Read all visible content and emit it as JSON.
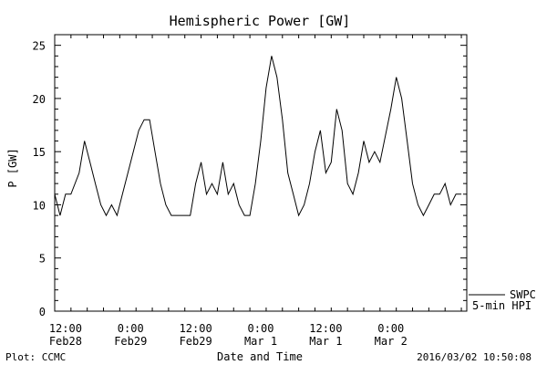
{
  "chart_data": {
    "type": "line",
    "title": "Hemispheric Power [GW]",
    "ylabel": "P [GW]",
    "xlabel": "Date and Time",
    "ylim": [
      0,
      26
    ],
    "yticks": [
      0,
      5,
      10,
      15,
      20,
      25
    ],
    "xlim": [
      "2016-02-28T10:00",
      "2016-03-02T14:00"
    ],
    "xticks": [
      {
        "time": "2016-02-28T12:00",
        "line1": "12:00",
        "line2": "Feb28"
      },
      {
        "time": "2016-02-29T00:00",
        "line1": "0:00",
        "line2": "Feb29"
      },
      {
        "time": "2016-02-29T12:00",
        "line1": "12:00",
        "line2": "Feb29"
      },
      {
        "time": "2016-03-01T00:00",
        "line1": "0:00",
        "line2": "Mar 1"
      },
      {
        "time": "2016-03-01T12:00",
        "line1": "12:00",
        "line2": "Mar 1"
      },
      {
        "time": "2016-03-02T00:00",
        "line1": "0:00",
        "line2": "Mar 2"
      }
    ],
    "grid": false,
    "legend_position": "bottom-right",
    "series": [
      {
        "name": "SWPC 5-min HPI",
        "color": "#000000",
        "points": [
          [
            "2016-02-28T10:00",
            11
          ],
          [
            "2016-02-28T11:00",
            9
          ],
          [
            "2016-02-28T12:00",
            11
          ],
          [
            "2016-02-28T13:00",
            11
          ],
          [
            "2016-02-28T14:30",
            13
          ],
          [
            "2016-02-28T15:30",
            16
          ],
          [
            "2016-02-28T16:30",
            14
          ],
          [
            "2016-02-28T17:30",
            12
          ],
          [
            "2016-02-28T18:30",
            10
          ],
          [
            "2016-02-28T19:30",
            9
          ],
          [
            "2016-02-28T20:30",
            10
          ],
          [
            "2016-02-28T21:30",
            9
          ],
          [
            "2016-02-28T22:30",
            11
          ],
          [
            "2016-02-29T00:00",
            14
          ],
          [
            "2016-02-29T01:30",
            17
          ],
          [
            "2016-02-29T02:30",
            18
          ],
          [
            "2016-02-29T03:30",
            18
          ],
          [
            "2016-02-29T04:30",
            15
          ],
          [
            "2016-02-29T05:30",
            12
          ],
          [
            "2016-02-29T06:30",
            10
          ],
          [
            "2016-02-29T07:30",
            9
          ],
          [
            "2016-02-29T10:00",
            9
          ],
          [
            "2016-02-29T11:00",
            9
          ],
          [
            "2016-02-29T12:00",
            12
          ],
          [
            "2016-02-29T13:00",
            14
          ],
          [
            "2016-02-29T14:00",
            11
          ],
          [
            "2016-02-29T15:00",
            12
          ],
          [
            "2016-02-29T16:00",
            11
          ],
          [
            "2016-02-29T17:00",
            14
          ],
          [
            "2016-02-29T18:00",
            11
          ],
          [
            "2016-02-29T19:00",
            12
          ],
          [
            "2016-02-29T20:00",
            10
          ],
          [
            "2016-02-29T21:00",
            9
          ],
          [
            "2016-02-29T22:00",
            9
          ],
          [
            "2016-02-29T23:00",
            12
          ],
          [
            "2016-03-01T00:00",
            16
          ],
          [
            "2016-03-01T01:00",
            21
          ],
          [
            "2016-03-01T02:00",
            24
          ],
          [
            "2016-03-01T03:00",
            22
          ],
          [
            "2016-03-01T04:00",
            18
          ],
          [
            "2016-03-01T05:00",
            13
          ],
          [
            "2016-03-01T06:00",
            11
          ],
          [
            "2016-03-01T07:00",
            9
          ],
          [
            "2016-03-01T08:00",
            10
          ],
          [
            "2016-03-01T09:00",
            12
          ],
          [
            "2016-03-01T10:00",
            15
          ],
          [
            "2016-03-01T11:00",
            17
          ],
          [
            "2016-03-01T12:00",
            13
          ],
          [
            "2016-03-01T13:00",
            14
          ],
          [
            "2016-03-01T14:00",
            19
          ],
          [
            "2016-03-01T15:00",
            17
          ],
          [
            "2016-03-01T16:00",
            12
          ],
          [
            "2016-03-01T17:00",
            11
          ],
          [
            "2016-03-01T18:00",
            13
          ],
          [
            "2016-03-01T19:00",
            16
          ],
          [
            "2016-03-01T20:00",
            14
          ],
          [
            "2016-03-01T21:00",
            15
          ],
          [
            "2016-03-01T22:00",
            14
          ],
          [
            "2016-03-02T00:00",
            19
          ],
          [
            "2016-03-02T01:00",
            22
          ],
          [
            "2016-03-02T02:00",
            20
          ],
          [
            "2016-03-02T03:00",
            16
          ],
          [
            "2016-03-02T04:00",
            12
          ],
          [
            "2016-03-02T05:00",
            10
          ],
          [
            "2016-03-02T06:00",
            9
          ],
          [
            "2016-03-02T07:00",
            10
          ],
          [
            "2016-03-02T08:00",
            11
          ],
          [
            "2016-03-02T09:00",
            11
          ],
          [
            "2016-03-02T10:00",
            12
          ],
          [
            "2016-03-02T11:00",
            10
          ],
          [
            "2016-03-02T12:00",
            11
          ],
          [
            "2016-03-02T13:00",
            11
          ]
        ]
      }
    ]
  },
  "legend": {
    "line1": "SWPC",
    "line2": "5-min HPI"
  },
  "footer": {
    "left": "Plot: CCMC",
    "right": "2016/03/02 10:50:08"
  }
}
